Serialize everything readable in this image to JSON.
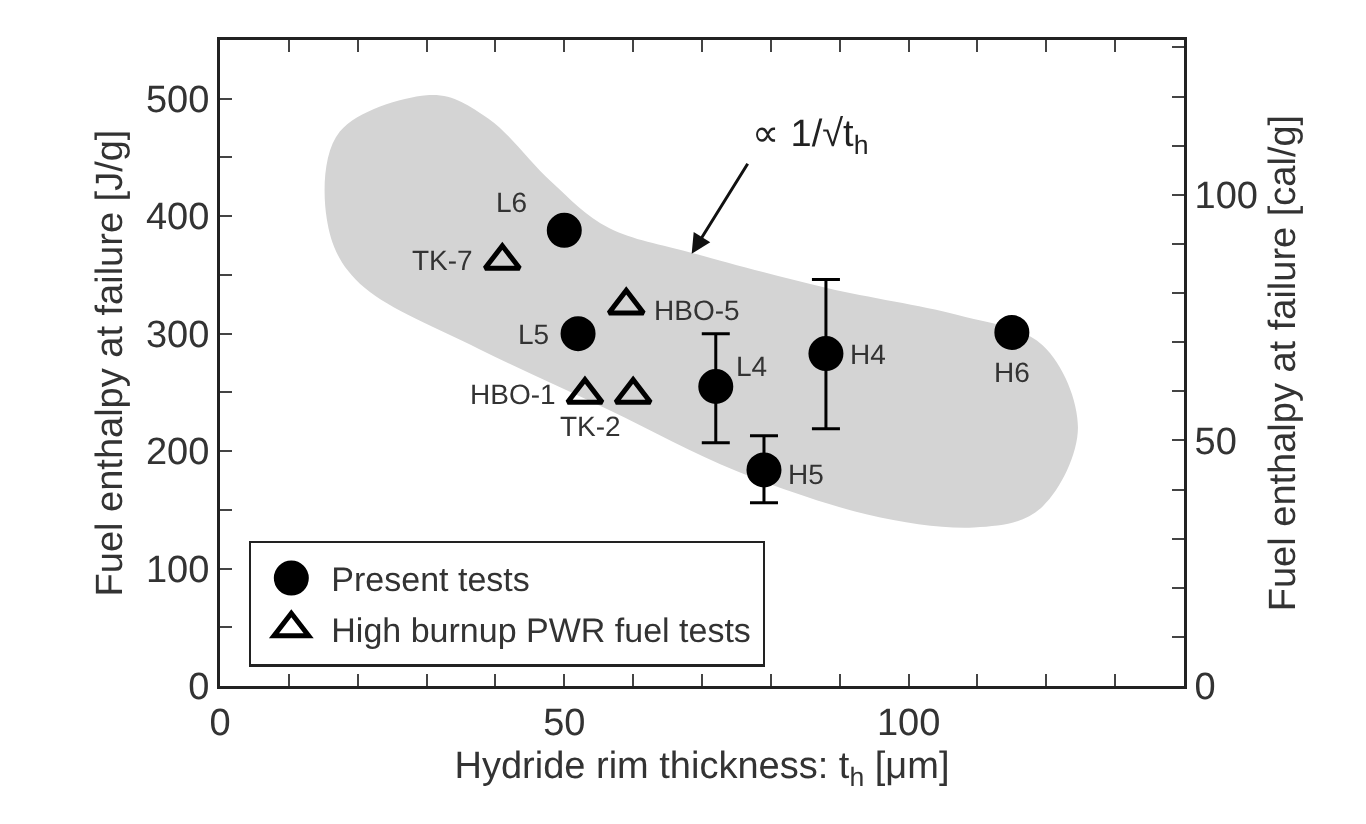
{
  "chart_data": {
    "type": "scatter",
    "xlabel": "Hydride rim thickness: t$_{h}$ [μm]",
    "ylabel": "Fuel enthalpy at failure [J/g]",
    "y2label": "Fuel enthalpy at failure [cal/g]",
    "xlim": [
      0,
      140
    ],
    "xticks": [
      0,
      {
        "value": 10,
        "label": null
      },
      {
        "value": 20,
        "label": null
      },
      {
        "value": 30,
        "label": null
      },
      {
        "value": 40,
        "label": null
      },
      50,
      {
        "value": 60,
        "label": null
      },
      {
        "value": 70,
        "label": null
      },
      {
        "value": 80,
        "label": null
      },
      {
        "value": 90,
        "label": null
      },
      100,
      {
        "value": 110,
        "label": null
      },
      {
        "value": 120,
        "label": null
      },
      {
        "value": 130,
        "label": null
      },
      {
        "value": 140,
        "label": null
      }
    ],
    "ylim": [
      0,
      550
    ],
    "yticks": [
      0,
      {
        "value": 50,
        "label": null
      },
      100,
      {
        "value": 150,
        "label": null
      },
      200,
      {
        "value": 250,
        "label": null
      },
      300,
      {
        "value": 350,
        "label": null
      },
      400,
      {
        "value": 450,
        "label": null
      },
      500,
      {
        "value": 550,
        "label": null
      }
    ],
    "y2lim": [
      0,
      131.5
    ],
    "y2ticks": [
      0,
      {
        "value": 10,
        "label": null
      },
      {
        "value": 20,
        "label": null
      },
      {
        "value": 30,
        "label": null
      },
      {
        "value": 40,
        "label": null
      },
      50,
      {
        "value": 60,
        "label": null
      },
      {
        "value": 70,
        "label": null
      },
      {
        "value": 80,
        "label": null
      },
      {
        "value": 90,
        "label": null
      },
      100,
      {
        "value": 110,
        "label": null
      },
      {
        "value": 120,
        "label": null
      },
      {
        "value": 130,
        "label": null
      }
    ],
    "grid": false,
    "legend": "bottom left",
    "series": [
      {
        "name": "Present tests",
        "color": "#000000",
        "marker": "circle",
        "x": [
          50,
          52,
          72,
          88,
          79,
          115
        ],
        "values": [
          388,
          300,
          255,
          283,
          184,
          301
        ],
        "errors": [
          null,
          null,
          [
            207,
            300
          ],
          [
            219,
            346
          ],
          [
            156,
            213
          ],
          null
        ]
      },
      {
        "name": "High burnup PWR fuel tests",
        "color": "#000000",
        "marker": "triangle",
        "x": [
          41,
          59,
          53,
          60
        ],
        "values": [
          362,
          324,
          248,
          248
        ]
      }
    ],
    "annotations": [
      {
        "text": "L6",
        "x": 50,
        "y": 388
      },
      {
        "text": "L5",
        "x": 52,
        "y": 300
      },
      {
        "text": "L4",
        "x": 72,
        "y": 255
      },
      {
        "text": "H4",
        "x": 88,
        "y": 283
      },
      {
        "text": "H5",
        "x": 79,
        "y": 184
      },
      {
        "text": "H6",
        "x": 115,
        "y": 301
      },
      {
        "text": "TK-7",
        "x": 41,
        "y": 362
      },
      {
        "text": "HBO-5",
        "x": 59,
        "y": 324
      },
      {
        "text": "HBO-1",
        "x": 53,
        "y": 248
      },
      {
        "text": "TK-2",
        "x": 60,
        "y": 248
      },
      "∝ 1/√t$_{h}$"
    ]
  }
}
